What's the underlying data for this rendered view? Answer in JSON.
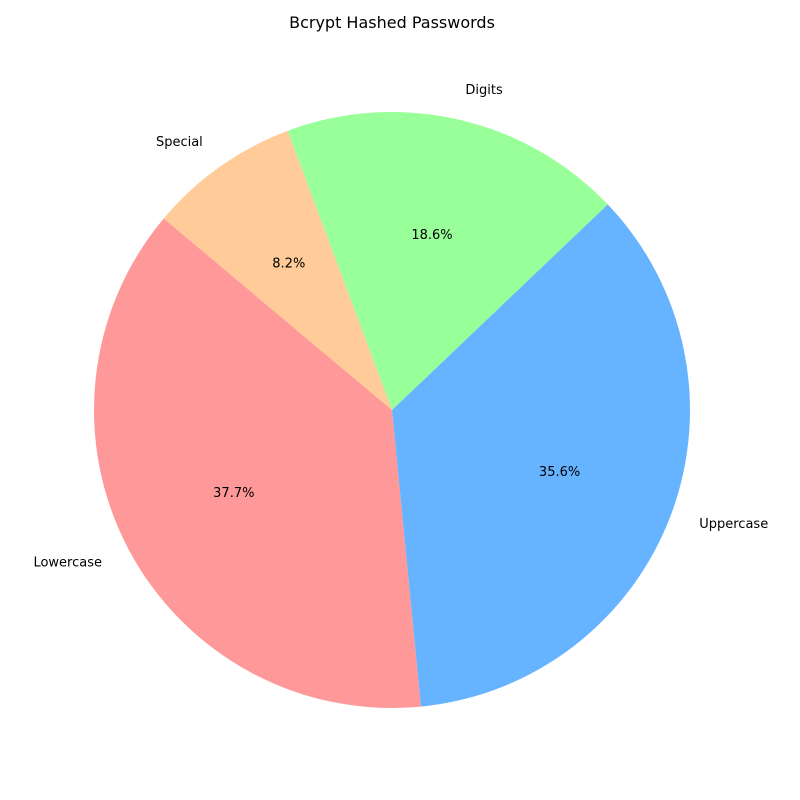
{
  "chart_data": {
    "type": "pie",
    "title": "Bcrypt Hashed Passwords",
    "slices": [
      {
        "label": "Lowercase",
        "value": 37.7,
        "pct_label": "37.7%",
        "color": "#ff9999"
      },
      {
        "label": "Uppercase",
        "value": 35.6,
        "pct_label": "35.6%",
        "color": "#66b3ff"
      },
      {
        "label": "Digits",
        "value": 18.6,
        "pct_label": "18.6%",
        "color": "#99ff99"
      },
      {
        "label": "Special",
        "value": 8.2,
        "pct_label": "8.2%",
        "color": "#ffcc99"
      }
    ],
    "legend": "none"
  }
}
